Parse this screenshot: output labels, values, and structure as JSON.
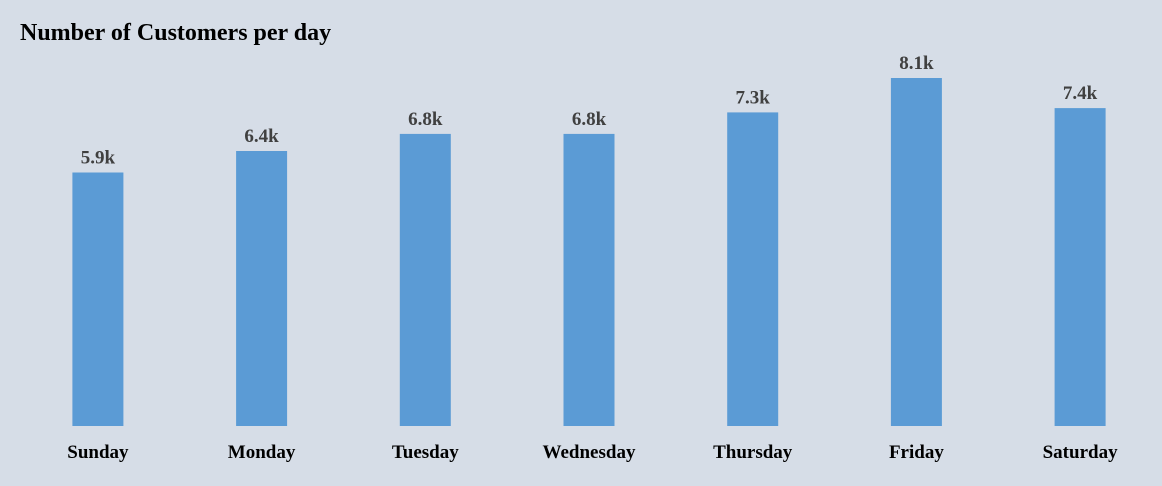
{
  "chart_data": {
    "type": "bar",
    "title": "Number of Customers per day",
    "categories": [
      "Sunday",
      "Monday",
      "Tuesday",
      "Wednesday",
      "Thursday",
      "Friday",
      "Saturday"
    ],
    "values": [
      5900,
      6400,
      6800,
      6800,
      7300,
      8100,
      7400
    ],
    "data_labels": [
      "5.9k",
      "6.4k",
      "6.8k",
      "6.8k",
      "7.3k",
      "8.1k",
      "7.4k"
    ],
    "xlabel": "",
    "ylabel": "",
    "ylim": [
      0,
      8100
    ],
    "grid": false,
    "legend": "none",
    "colors": {
      "bar": "#5b9bd5",
      "background": "#d6dde7",
      "data_label": "#404040",
      "category_label": "#000000"
    }
  }
}
